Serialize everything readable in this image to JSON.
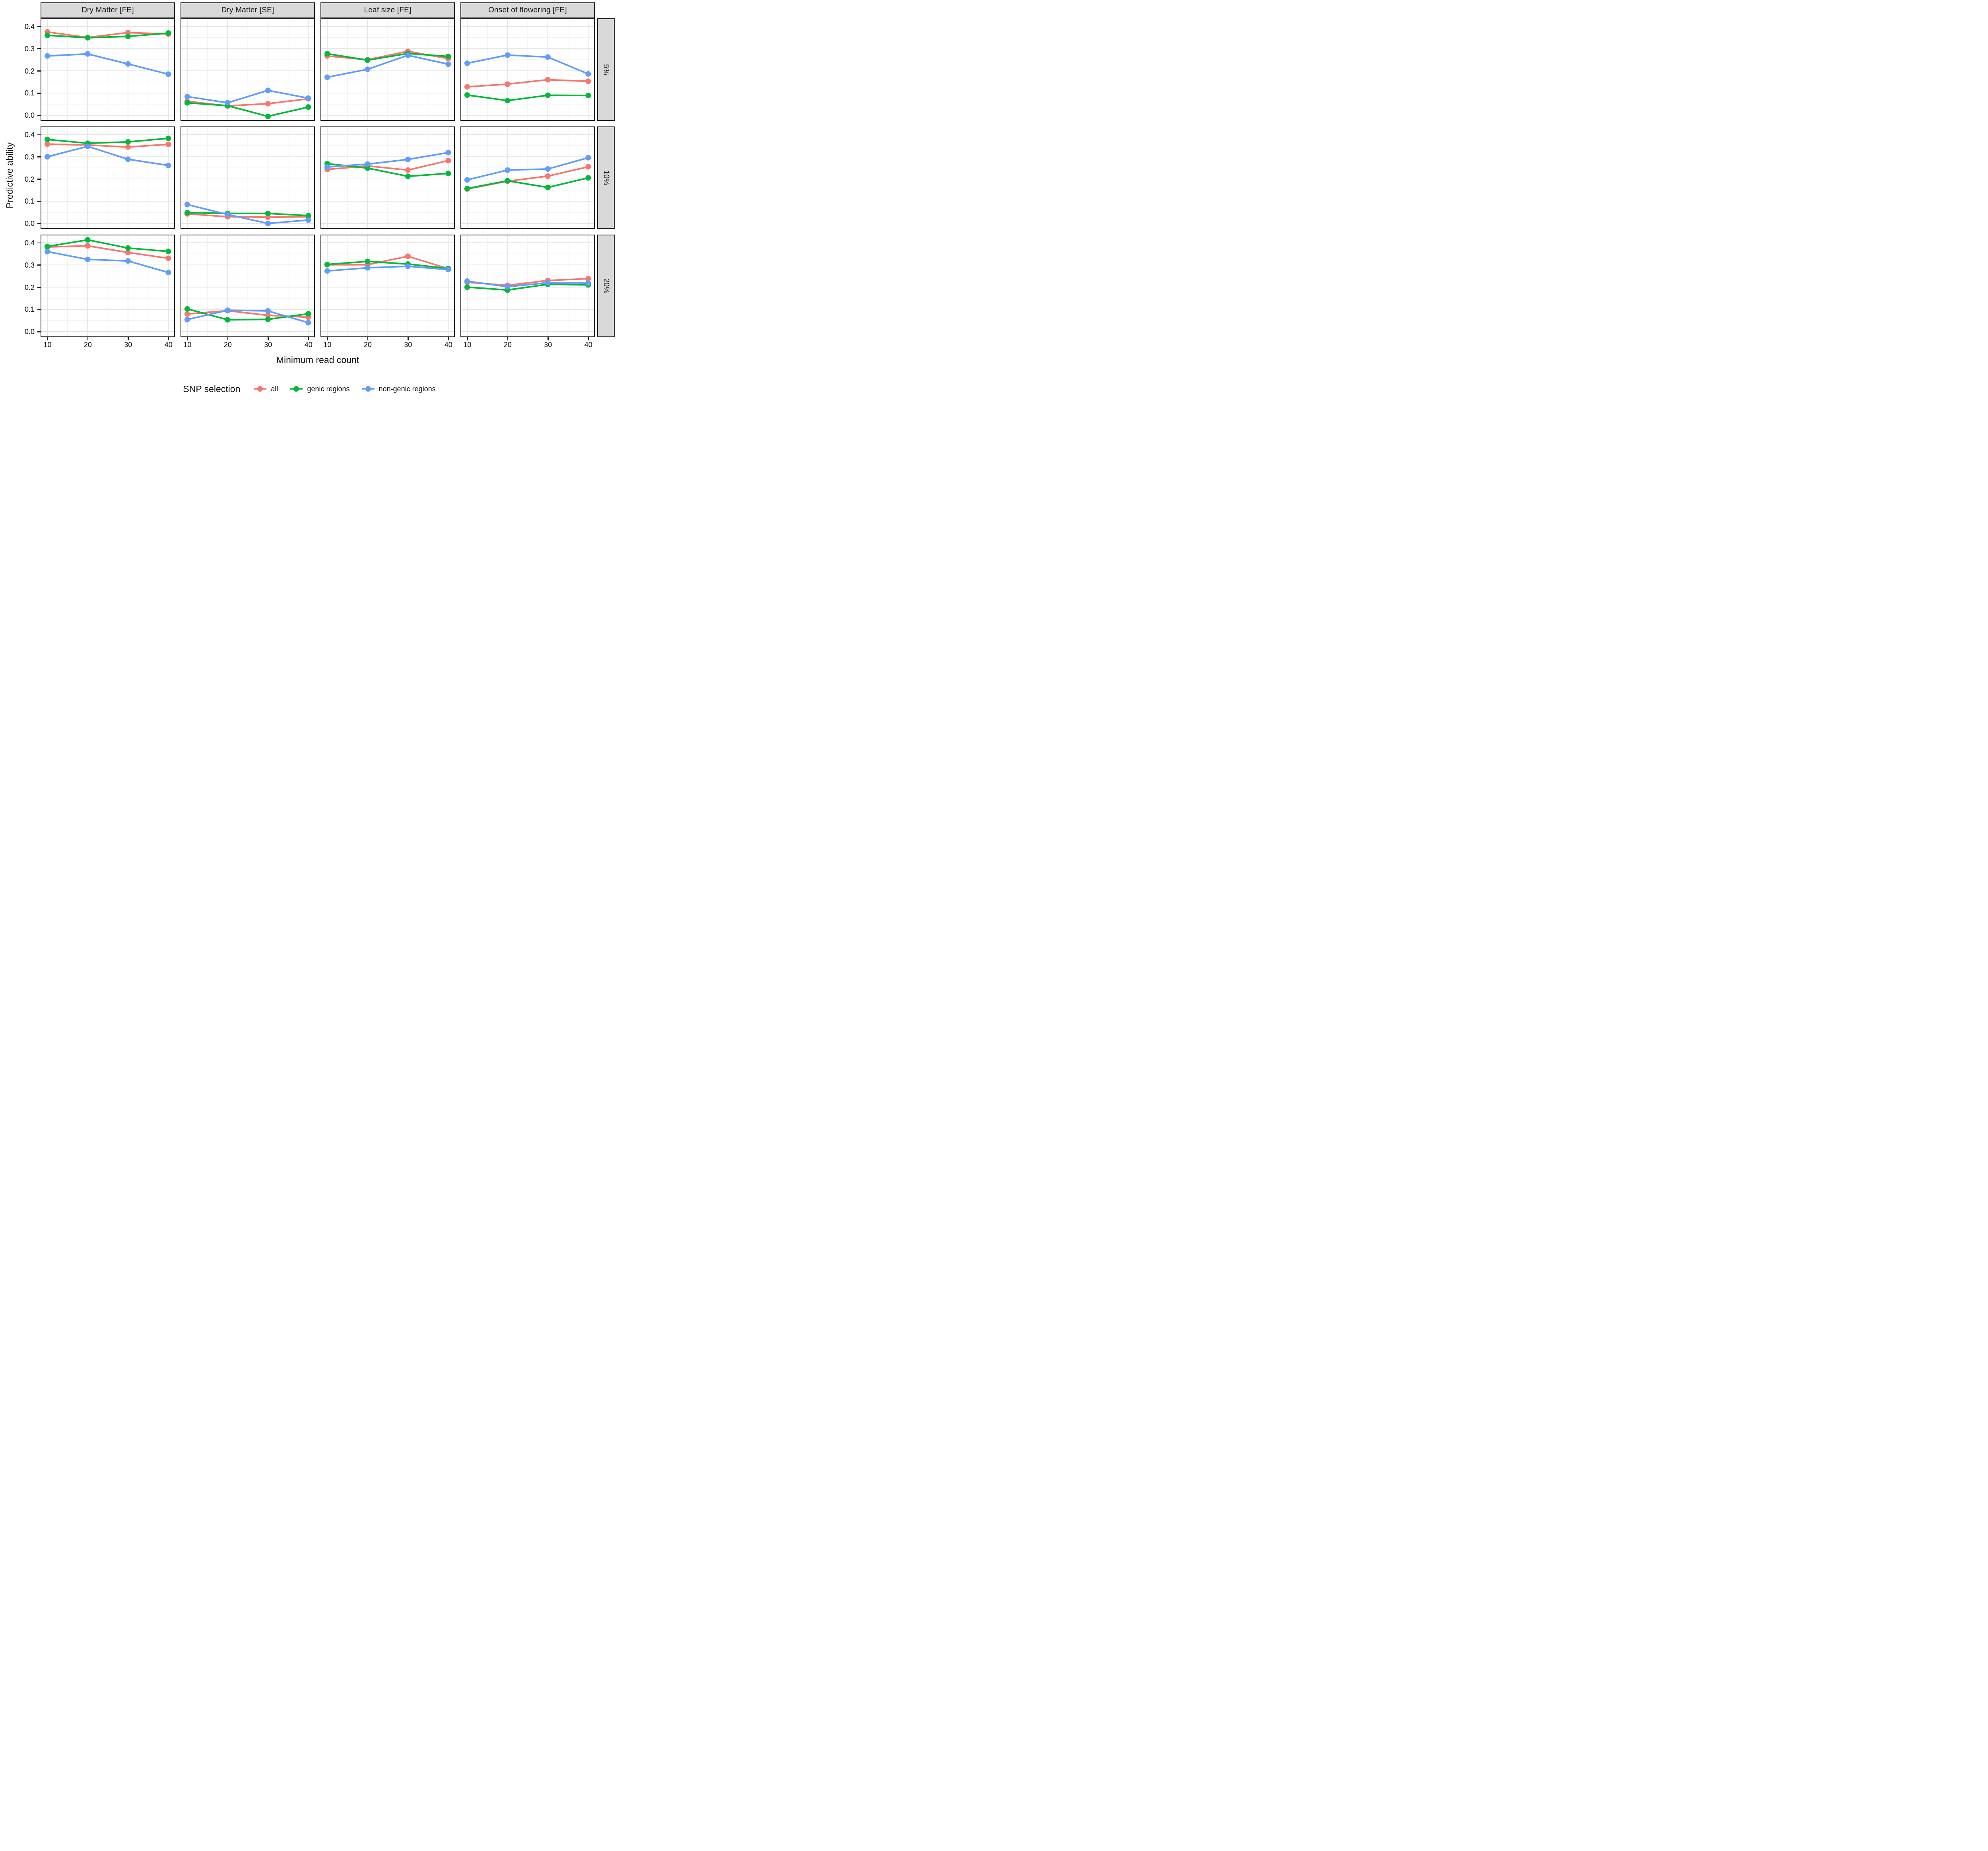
{
  "figure": {
    "x_axis_title": "Minimum read count",
    "y_axis_title": "Predictive ability"
  },
  "legend": {
    "title": "SNP selection",
    "items": [
      {
        "label": "all",
        "color": "#F8766D"
      },
      {
        "label": "genic regions",
        "color": "#00BA38"
      },
      {
        "label": "non-genic regions",
        "color": "#619CFF"
      }
    ]
  },
  "chart_data": {
    "type": "line",
    "title": "",
    "xlabel": "Minimum read count",
    "ylabel": "Predictive ability",
    "x": [
      10,
      20,
      30,
      40
    ],
    "x_tick_labels": [
      "10",
      "20",
      "30",
      "40"
    ],
    "y_tick_labels": [
      "0.4",
      "0.3",
      "0.2",
      "0.1",
      "0.0"
    ],
    "y_major": [
      0.4,
      0.3,
      0.2,
      0.1,
      0.0
    ],
    "y_minor": [
      0.35,
      0.25,
      0.15,
      0.05
    ],
    "ylim": [
      -0.02,
      0.433
    ],
    "grid": true,
    "legend_position": "bottom",
    "facet_cols": [
      "Dry Matter [FE]",
      "Dry Matter [SE]",
      "Leaf size [FE]",
      "Onset of flowering [FE]"
    ],
    "facet_rows": [
      "5%",
      "10%",
      "20%"
    ],
    "series_order": [
      "all",
      "genic_regions",
      "non_genic_regions"
    ],
    "series_colors": {
      "all": "#F8766D",
      "genic_regions": "#00BA38",
      "non_genic_regions": "#619CFF"
    },
    "panels": [
      {
        "facet_col": "Dry Matter [FE]",
        "facet_row": "5%",
        "series": {
          "all": [
            0.375,
            0.35,
            0.372,
            0.366
          ],
          "genic_regions": [
            0.36,
            0.349,
            0.355,
            0.37
          ],
          "non_genic_regions": [
            0.267,
            0.276,
            0.231,
            0.185
          ]
        }
      },
      {
        "facet_col": "Dry Matter [SE]",
        "facet_row": "5%",
        "series": {
          "all": [
            0.063,
            0.042,
            0.052,
            0.074
          ],
          "genic_regions": [
            0.056,
            0.043,
            -0.005,
            0.037
          ],
          "non_genic_regions": [
            0.084,
            0.056,
            0.112,
            0.077
          ]
        }
      },
      {
        "facet_col": "Leaf size [FE]",
        "facet_row": "5%",
        "series": {
          "all": [
            0.267,
            0.25,
            0.288,
            0.255
          ],
          "genic_regions": [
            0.277,
            0.248,
            0.278,
            0.265
          ],
          "non_genic_regions": [
            0.171,
            0.207,
            0.27,
            0.23
          ]
        }
      },
      {
        "facet_col": "Onset of flowering [FE]",
        "facet_row": "5%",
        "series": {
          "all": [
            0.128,
            0.14,
            0.16,
            0.153
          ],
          "genic_regions": [
            0.091,
            0.066,
            0.09,
            0.089
          ],
          "non_genic_regions": [
            0.234,
            0.271,
            0.262,
            0.186
          ]
        }
      },
      {
        "facet_col": "Dry Matter [FE]",
        "facet_row": "10%",
        "series": {
          "all": [
            0.357,
            0.353,
            0.344,
            0.356
          ],
          "genic_regions": [
            0.378,
            0.361,
            0.367,
            0.383
          ],
          "non_genic_regions": [
            0.3,
            0.347,
            0.289,
            0.261
          ]
        }
      },
      {
        "facet_col": "Dry Matter [SE]",
        "facet_row": "10%",
        "series": {
          "all": [
            0.043,
            0.03,
            0.028,
            0.03
          ],
          "genic_regions": [
            0.048,
            0.045,
            0.045,
            0.035
          ],
          "non_genic_regions": [
            0.085,
            0.04,
            0.0,
            0.015
          ]
        }
      },
      {
        "facet_col": "Leaf size [FE]",
        "facet_row": "10%",
        "series": {
          "all": [
            0.243,
            0.259,
            0.24,
            0.283
          ],
          "genic_regions": [
            0.269,
            0.249,
            0.212,
            0.225
          ],
          "non_genic_regions": [
            0.254,
            0.267,
            0.288,
            0.319
          ]
        }
      },
      {
        "facet_col": "Onset of flowering [FE]",
        "facet_row": "10%",
        "series": {
          "all": [
            0.155,
            0.19,
            0.213,
            0.255
          ],
          "genic_regions": [
            0.157,
            0.192,
            0.162,
            0.205
          ],
          "non_genic_regions": [
            0.196,
            0.24,
            0.245,
            0.296
          ]
        }
      },
      {
        "facet_col": "Dry Matter [FE]",
        "facet_row": "20%",
        "series": {
          "all": [
            0.381,
            0.386,
            0.356,
            0.33
          ],
          "genic_regions": [
            0.383,
            0.413,
            0.376,
            0.361
          ],
          "non_genic_regions": [
            0.36,
            0.325,
            0.318,
            0.266
          ]
        }
      },
      {
        "facet_col": "Dry Matter [SE]",
        "facet_row": "20%",
        "series": {
          "all": [
            0.079,
            0.094,
            0.073,
            0.065
          ],
          "genic_regions": [
            0.102,
            0.053,
            0.055,
            0.08
          ],
          "non_genic_regions": [
            0.054,
            0.096,
            0.093,
            0.04
          ]
        }
      },
      {
        "facet_col": "Leaf size [FE]",
        "facet_row": "20%",
        "series": {
          "all": [
            0.301,
            0.301,
            0.339,
            0.283
          ],
          "genic_regions": [
            0.302,
            0.316,
            0.304,
            0.284
          ],
          "non_genic_regions": [
            0.273,
            0.287,
            0.294,
            0.279
          ]
        }
      },
      {
        "facet_col": "Onset of flowering [FE]",
        "facet_row": "20%",
        "series": {
          "all": [
            0.222,
            0.208,
            0.23,
            0.238
          ],
          "genic_regions": [
            0.2,
            0.187,
            0.213,
            0.21
          ],
          "non_genic_regions": [
            0.227,
            0.202,
            0.22,
            0.218
          ]
        }
      }
    ]
  }
}
